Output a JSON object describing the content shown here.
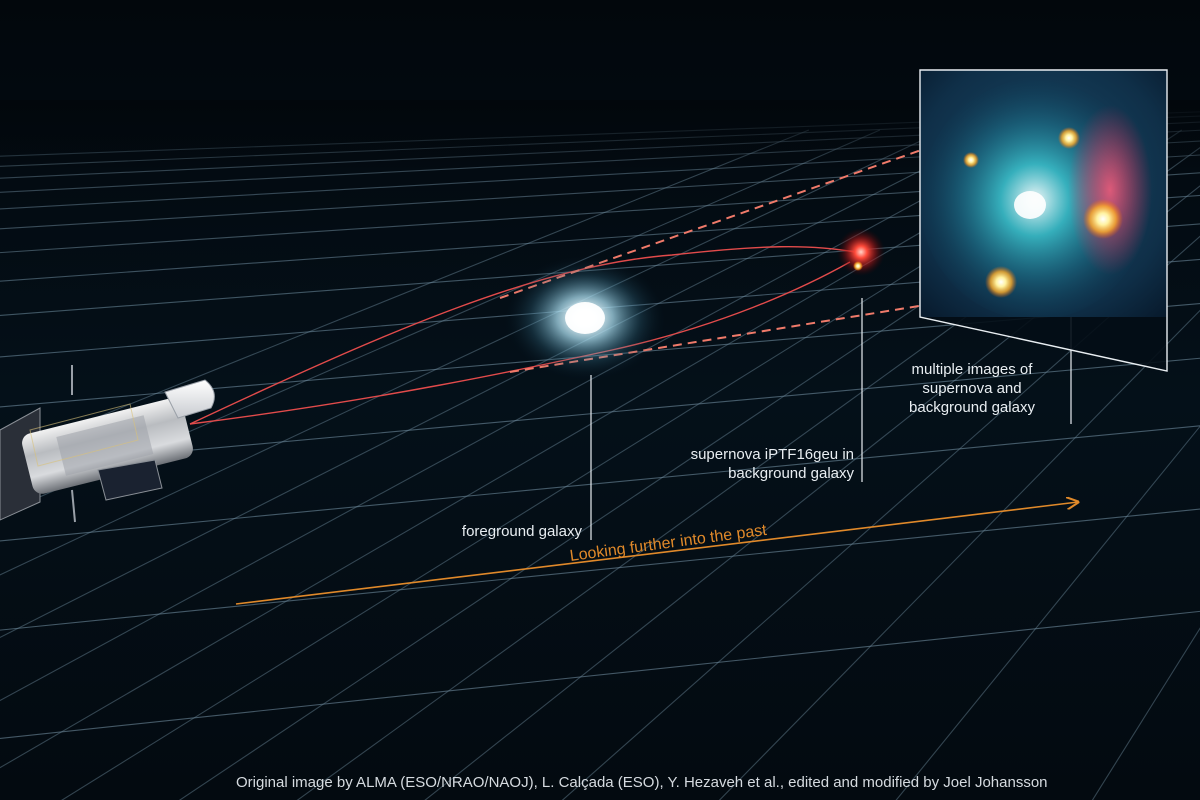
{
  "labels": {
    "foreground": "foreground galaxy",
    "supernova_lines": [
      "supernova iPTF16geu in",
      "background galaxy"
    ],
    "multiple_lines": [
      "multiple images of",
      "supernova and",
      "background galaxy"
    ],
    "time_arrow": "Looking further into the past"
  },
  "credit": "Original image by ALMA (ESO/NRAO/NAOJ), L. Calçada (ESO), Y. Hezaveh et al., edited and modified by Joel Johansson",
  "icons": {
    "telescope": "hubble-telescope-icon",
    "foreground_galaxy": "foreground-galaxy-icon",
    "background_galaxy": "supernova-background-galaxy-icon"
  },
  "colors": {
    "background": "#02080d",
    "grid": "#6f8c9e",
    "light_path": "#e24b4b",
    "time_arrow": "#e0892a",
    "label_text": "#e9eef2",
    "foreground_galaxy": "#d8f4ff",
    "inset_glow": "#2aa7b5",
    "supernova_image": "#ffb020"
  }
}
